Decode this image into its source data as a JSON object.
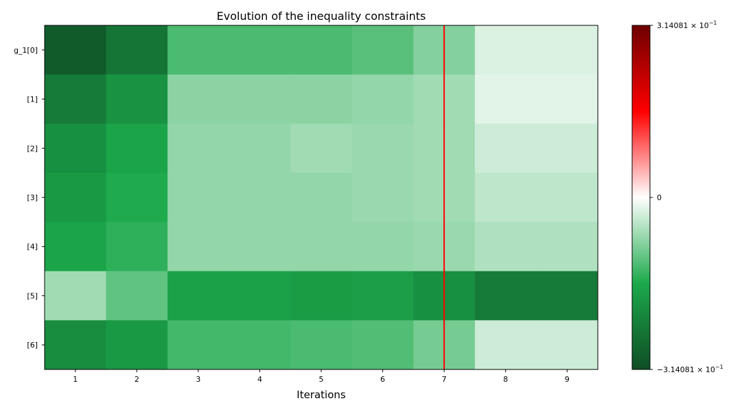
{
  "chart_data": {
    "type": "heatmap",
    "title": "Evolution of the inequality constraints",
    "xlabel": "Iterations",
    "ylabel": "",
    "x": [
      "1",
      "2",
      "3",
      "4",
      "5",
      "6",
      "7",
      "8",
      "9"
    ],
    "y": [
      "g_1[0]",
      "[1]",
      "[2]",
      "[3]",
      "[4]",
      "[5]",
      "[6]"
    ],
    "values": [
      [
        -0.29,
        -0.245,
        -0.125,
        -0.125,
        -0.125,
        -0.115,
        -0.085,
        -0.025,
        -0.025
      ],
      [
        -0.235,
        -0.195,
        -0.08,
        -0.08,
        -0.08,
        -0.075,
        -0.065,
        -0.02,
        -0.02
      ],
      [
        -0.2,
        -0.165,
        -0.075,
        -0.075,
        -0.065,
        -0.07,
        -0.065,
        -0.035,
        -0.035
      ],
      [
        -0.185,
        -0.155,
        -0.075,
        -0.075,
        -0.075,
        -0.07,
        -0.065,
        -0.045,
        -0.045
      ],
      [
        -0.165,
        -0.145,
        -0.075,
        -0.075,
        -0.075,
        -0.075,
        -0.07,
        -0.055,
        -0.055
      ],
      [
        -0.065,
        -0.11,
        -0.17,
        -0.17,
        -0.18,
        -0.175,
        -0.2,
        -0.235,
        -0.235
      ],
      [
        -0.205,
        -0.185,
        -0.13,
        -0.13,
        -0.125,
        -0.12,
        -0.095,
        -0.035,
        -0.035
      ]
    ],
    "vline_x": 7,
    "vline_color": "#ff0000",
    "colorscale": [
      "#0f4d25",
      "#1ca94b",
      "#ffffff",
      "#ff0000",
      "#6e0000"
    ],
    "colorbar": {
      "min": -0.314081,
      "max": 0.314081,
      "tick_labels": {
        "top": "3.14081 × 10",
        "top_exp": "−1",
        "mid": "0",
        "bottom": "−3.14081 × 10",
        "bottom_exp": "−1"
      }
    },
    "grid": false
  }
}
